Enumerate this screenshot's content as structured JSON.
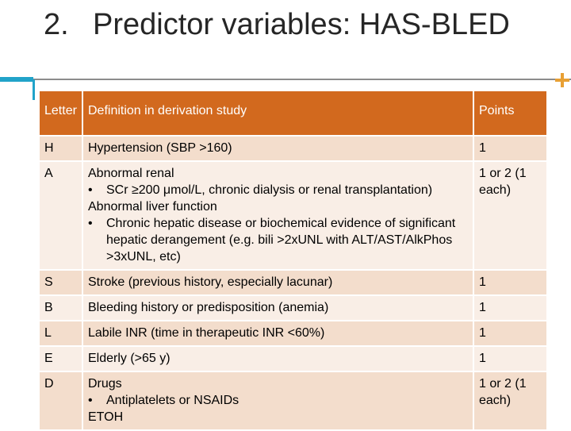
{
  "slide": {
    "number": "2.",
    "title": "Predictor variables: HAS-BLED"
  },
  "table": {
    "headers": [
      "Letter",
      "Definition in derivation study",
      "Points"
    ],
    "rows": [
      {
        "letter": "H",
        "lines": [
          {
            "type": "text",
            "text": "Hypertension (SBP >160)"
          }
        ],
        "points": "1"
      },
      {
        "letter": "A",
        "lines": [
          {
            "type": "text",
            "text": "Abnormal renal"
          },
          {
            "type": "bullet",
            "text": "SCr ≥200 μmol/L, chronic dialysis or renal transplantation)"
          },
          {
            "type": "text",
            "text": "Abnormal liver function"
          },
          {
            "type": "bullet",
            "text": "Chronic hepatic disease or biochemical evidence of significant hepatic derangement (e.g. bili >2xUNL with ALT/AST/AlkPhos >3xUNL, etc)"
          }
        ],
        "points": "1 or 2 (1 each)"
      },
      {
        "letter": "S",
        "lines": [
          {
            "type": "text",
            "text": "Stroke (previous history, especially lacunar)"
          }
        ],
        "points": "1"
      },
      {
        "letter": "B",
        "lines": [
          {
            "type": "text",
            "text": "Bleeding history or predisposition (anemia)"
          }
        ],
        "points": "1"
      },
      {
        "letter": "L",
        "lines": [
          {
            "type": "text",
            "text": "Labile INR (time in therapeutic INR <60%)"
          }
        ],
        "points": "1"
      },
      {
        "letter": "E",
        "lines": [
          {
            "type": "text",
            "text": "Elderly (>65 y)"
          }
        ],
        "points": "1"
      },
      {
        "letter": "D",
        "lines": [
          {
            "type": "text",
            "text": "Drugs"
          },
          {
            "type": "bullet",
            "text": "Antiplatelets or NSAIDs"
          },
          {
            "type": "text",
            "text": "ETOH"
          }
        ],
        "points": "1 or 2 (1 each)"
      }
    ]
  },
  "colors": {
    "header_bg": "#d2691e",
    "row_bg": "#f3ddcc",
    "accent_blue": "#21a3c9",
    "accent_orange": "#e8a034"
  }
}
